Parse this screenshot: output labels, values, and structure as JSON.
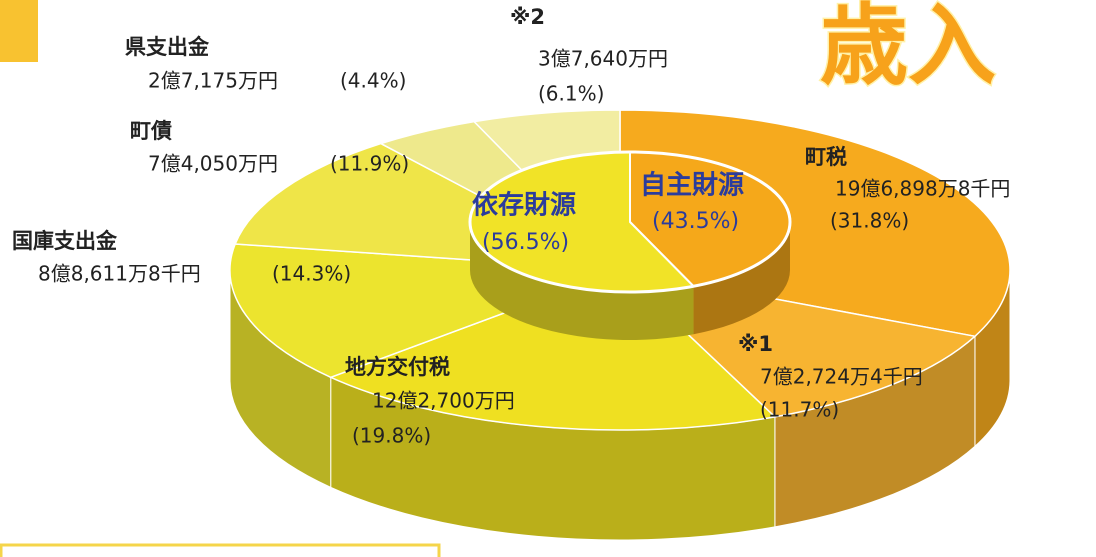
{
  "chart_data": {
    "type": "pie",
    "title": "歳入",
    "categories": [
      "町税",
      "※1",
      "地方交付税",
      "国庫支出金",
      "町債",
      "県支出金",
      "※2"
    ],
    "amounts": [
      "19億6,898万8千円",
      "7億2,724万4千円",
      "12億2,700万円",
      "8億8,611万8千円",
      "7億4,050万円",
      "2億7,175万円",
      "3億7,640万円"
    ],
    "values": [
      31.8,
      11.7,
      19.8,
      14.3,
      11.9,
      4.4,
      6.1
    ],
    "value_labels": [
      "(31.8%)",
      "(11.7%)",
      "(19.8%)",
      "(14.3%)",
      "(11.9%)",
      "(4.4%)",
      "(6.1%)"
    ],
    "colors": [
      "#f6aa1e",
      "#f7b431",
      "#efe021",
      "#ece42e",
      "#efe548",
      "#eee98c",
      "#f2eda2"
    ],
    "groups": [
      {
        "name": "自主財源",
        "value": 43.5,
        "value_label": "(43.5%)",
        "color": "#f5a81a"
      },
      {
        "name": "依存財源",
        "value": 56.5,
        "value_label": "(56.5%)",
        "color": "#f1e327"
      }
    ]
  }
}
